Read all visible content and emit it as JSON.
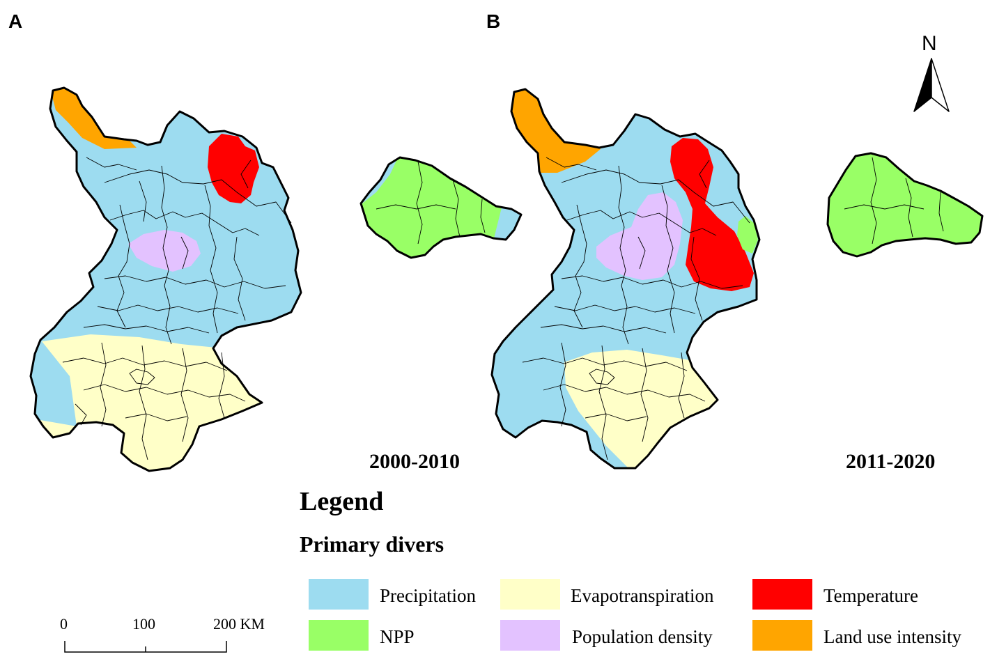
{
  "panels": [
    {
      "label": "A",
      "period": "2000-2010"
    },
    {
      "label": "B",
      "period": "2011-2020"
    }
  ],
  "north_arrow": {
    "label": "N"
  },
  "legend": {
    "title": "Legend",
    "subtitle": "Primary divers",
    "items": [
      {
        "label": "Precipitation",
        "color": "#9ddcf0"
      },
      {
        "label": "Evapotranspiration",
        "color": "#ffffc8"
      },
      {
        "label": "Temperature",
        "color": "#ff0000"
      },
      {
        "label": "NPP",
        "color": "#99ff66"
      },
      {
        "label": "Population density",
        "color": "#e3c2ff"
      },
      {
        "label": "Land use intensity",
        "color": "#ffa500"
      }
    ]
  },
  "scale_bar": {
    "ticks": [
      "0",
      "100",
      "200 KM"
    ]
  }
}
